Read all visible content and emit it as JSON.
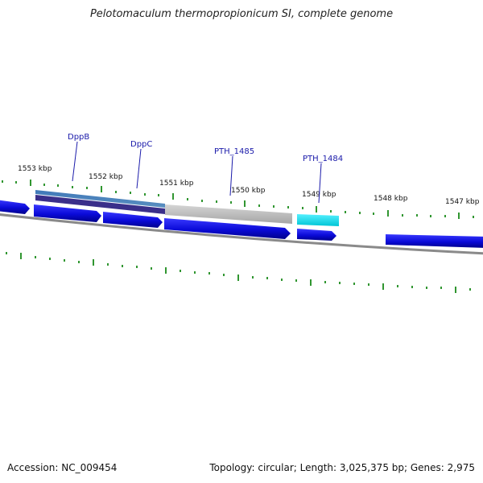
{
  "title": "Pelotomaculum thermopropionicum SI, complete genome",
  "footer": {
    "accession": "Accession: NC_009454",
    "summary": "Topology: circular; Length: 3,025,375 bp; Genes: 2,975"
  },
  "kbp_labels": [
    "1553 kbp",
    "1552 kbp",
    "1551 kbp",
    "1550 kbp",
    "1549 kbp",
    "1548 kbp",
    "1547 kbp"
  ],
  "gene_labels": [
    "DppB",
    "DppC",
    "PTH_1485",
    "PTH_1484"
  ],
  "colors": {
    "gene_blue": "#1414e6",
    "highlight_teal": "#4a7fb0",
    "highlight_dark": "#3a2f8a",
    "grey_feature": "#bbbbbb",
    "cyan_feature": "#22e0ee",
    "tick_green": "#1a8a1a",
    "backbone": "#888888"
  }
}
